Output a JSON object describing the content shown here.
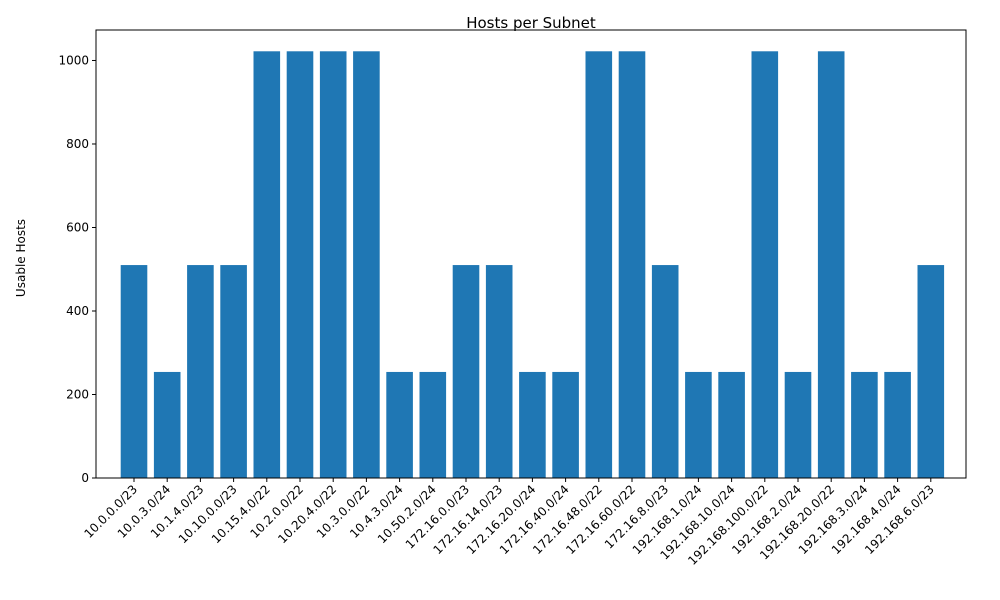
{
  "chart_data": {
    "type": "bar",
    "title": "Hosts per Subnet",
    "xlabel": "",
    "ylabel": "Usable Hosts",
    "ylim": [
      0,
      1073
    ],
    "yticks": [
      0,
      200,
      400,
      600,
      800,
      1000
    ],
    "grid": false,
    "bar_color": "#1f77b4",
    "categories": [
      "10.0.0.0/23",
      "10.0.3.0/24",
      "10.1.4.0/23",
      "10.10.0.0/23",
      "10.15.4.0/22",
      "10.2.0.0/22",
      "10.20.4.0/22",
      "10.3.0.0/22",
      "10.4.3.0/24",
      "10.50.2.0/24",
      "172.16.0.0/23",
      "172.16.14.0/23",
      "172.16.20.0/24",
      "172.16.40.0/24",
      "172.16.48.0/22",
      "172.16.60.0/22",
      "172.16.8.0/23",
      "192.168.1.0/24",
      "192.168.10.0/24",
      "192.168.100.0/22",
      "192.168.2.0/24",
      "192.168.20.0/22",
      "192.168.3.0/24",
      "192.168.4.0/24",
      "192.168.6.0/23"
    ],
    "values": [
      510,
      254,
      510,
      510,
      1022,
      1022,
      1022,
      1022,
      254,
      254,
      510,
      510,
      254,
      254,
      1022,
      1022,
      510,
      254,
      254,
      1022,
      254,
      1022,
      254,
      254,
      510
    ]
  }
}
